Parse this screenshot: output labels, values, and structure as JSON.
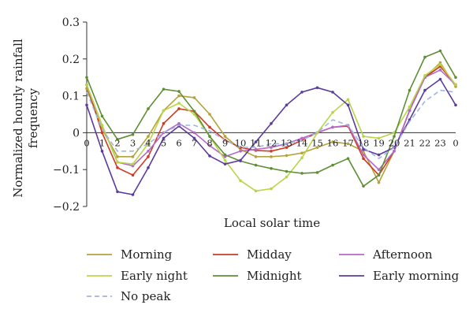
{
  "chart_data": {
    "type": "line",
    "xlabel": "Local solar time",
    "ylabel_lines": [
      "Normalized hourly rainfall",
      "frequency"
    ],
    "ylim": [
      -0.2,
      0.3
    ],
    "yticks": [
      -0.2,
      -0.1,
      0,
      0.1,
      0.2,
      0.3
    ],
    "ytick_labels": [
      "−0.2",
      "−0.1",
      "0",
      "0.1",
      "0.2",
      "0.3"
    ],
    "x_tick_labels": [
      "0",
      "1",
      "2",
      "3",
      "4",
      "5",
      "6",
      "7",
      "8",
      "9",
      "10",
      "11",
      "12",
      "13",
      "14",
      "15",
      "16",
      "17",
      "18",
      "19",
      "20",
      "21",
      "22",
      "23",
      "0"
    ],
    "legend_placement": "bottom",
    "series": [
      {
        "name": "Morning",
        "color": "#b5a33a",
        "dash": false,
        "values": [
          0.12,
          0.01,
          -0.065,
          -0.065,
          -0.01,
          0.06,
          0.1,
          0.095,
          0.05,
          -0.01,
          -0.045,
          -0.065,
          -0.065,
          -0.062,
          -0.055,
          -0.04,
          -0.025,
          -0.03,
          -0.05,
          -0.135,
          -0.05,
          0.06,
          0.15,
          0.19,
          0.125
        ]
      },
      {
        "name": "Midday",
        "color": "#cc3b22",
        "dash": false,
        "values": [
          0.13,
          0.0,
          -0.095,
          -0.115,
          -0.065,
          0.025,
          0.065,
          0.058,
          0.015,
          -0.02,
          -0.04,
          -0.048,
          -0.05,
          -0.04,
          -0.02,
          0.0,
          0.015,
          0.018,
          -0.07,
          -0.115,
          -0.05,
          0.06,
          0.15,
          0.18,
          0.13
        ]
      },
      {
        "name": "Afternoon",
        "color": "#b569c9",
        "dash": false,
        "values": [
          0.13,
          0.02,
          -0.08,
          -0.09,
          -0.05,
          0.0,
          0.025,
          0.0,
          -0.035,
          -0.065,
          -0.05,
          -0.045,
          -0.04,
          -0.03,
          -0.015,
          0.0,
          0.015,
          0.02,
          -0.06,
          -0.1,
          -0.05,
          0.06,
          0.15,
          0.17,
          0.13
        ]
      },
      {
        "name": "Early night",
        "color": "#b8d548",
        "dash": false,
        "values": [
          0.13,
          0.02,
          -0.08,
          -0.085,
          -0.03,
          0.06,
          0.08,
          0.05,
          -0.01,
          -0.075,
          -0.13,
          -0.158,
          -0.152,
          -0.12,
          -0.068,
          0.0,
          0.055,
          0.09,
          -0.01,
          -0.015,
          0.0,
          0.07,
          0.155,
          0.185,
          0.13
        ]
      },
      {
        "name": "Midnight",
        "color": "#5e8f35",
        "dash": false,
        "values": [
          0.15,
          0.045,
          -0.018,
          -0.005,
          0.065,
          0.118,
          0.112,
          0.058,
          -0.01,
          -0.06,
          -0.077,
          -0.088,
          -0.097,
          -0.105,
          -0.11,
          -0.108,
          -0.088,
          -0.07,
          -0.145,
          -0.115,
          -0.01,
          0.115,
          0.205,
          0.222,
          0.15
        ]
      },
      {
        "name": "Early morning",
        "color": "#5b3b9e",
        "dash": false,
        "values": [
          0.075,
          -0.05,
          -0.16,
          -0.168,
          -0.095,
          -0.015,
          0.018,
          -0.015,
          -0.063,
          -0.085,
          -0.075,
          -0.025,
          0.025,
          0.075,
          0.11,
          0.122,
          0.11,
          0.075,
          -0.045,
          -0.06,
          -0.04,
          0.035,
          0.115,
          0.145,
          0.075
        ]
      },
      {
        "name": "No peak",
        "color": "#9fb6de",
        "dash": true,
        "values": [
          0.11,
          0.01,
          -0.05,
          -0.05,
          -0.03,
          0.0,
          0.02,
          0.02,
          0.005,
          -0.02,
          -0.04,
          -0.04,
          -0.03,
          -0.03,
          -0.02,
          0.0,
          0.035,
          0.02,
          -0.04,
          -0.07,
          -0.04,
          0.03,
          0.085,
          0.115,
          0.11
        ]
      }
    ]
  }
}
